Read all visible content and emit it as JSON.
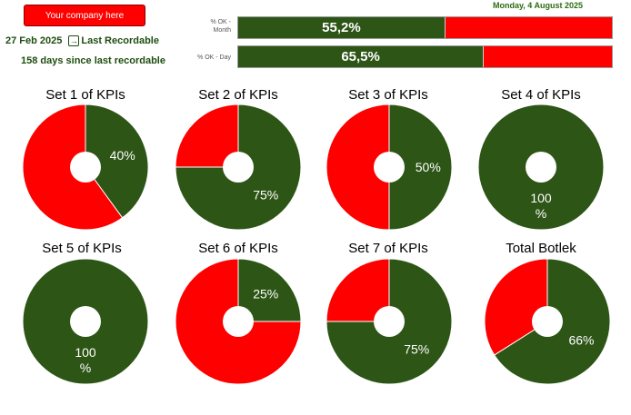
{
  "header": {
    "company_button": "Your company here",
    "last_recordable_date": "27 Feb 2025",
    "last_recordable_label": "Last Recordable",
    "days_since": "158 days  since last recordable",
    "current_date": "Monday, 4 August 2025"
  },
  "bars": [
    {
      "label_line1": "% OK -",
      "label_line2": "Month",
      "value": 55.2,
      "value_text": "55,2%"
    },
    {
      "label_line1": "% OK - Day",
      "label_line2": "",
      "value": 65.5,
      "value_text": "65,5%"
    }
  ],
  "colors": {
    "ok_green": "#2d5516",
    "not_ok_red": "#ff0000",
    "header_green": "#1e4d0f"
  },
  "icons": {
    "last_recordable": "arrow-into-box-icon"
  },
  "chart_data": [
    {
      "type": "pie",
      "title": "Set 1 of KPIs",
      "values": [
        40,
        60
      ],
      "labels": [
        "40%",
        ""
      ]
    },
    {
      "type": "pie",
      "title": "Set 2 of KPIs",
      "values": [
        75,
        25
      ],
      "labels": [
        "75%",
        ""
      ]
    },
    {
      "type": "pie",
      "title": "Set 3 of KPIs",
      "values": [
        50,
        50
      ],
      "labels": [
        "50%",
        ""
      ]
    },
    {
      "type": "pie",
      "title": "Set 4 of KPIs",
      "values": [
        100,
        0
      ],
      "labels": [
        "100\n%",
        ""
      ]
    },
    {
      "type": "pie",
      "title": "Set 5 of KPIs",
      "values": [
        100,
        0
      ],
      "labels": [
        "100\n%",
        ""
      ]
    },
    {
      "type": "pie",
      "title": "Set 6 of KPIs",
      "values": [
        25,
        75
      ],
      "labels": [
        "25%",
        ""
      ]
    },
    {
      "type": "pie",
      "title": "Set 7 of KPIs",
      "values": [
        75,
        25
      ],
      "labels": [
        "75%",
        ""
      ]
    },
    {
      "type": "pie",
      "title": "Total Botlek",
      "values": [
        66,
        34
      ],
      "labels": [
        "66%",
        ""
      ]
    }
  ]
}
